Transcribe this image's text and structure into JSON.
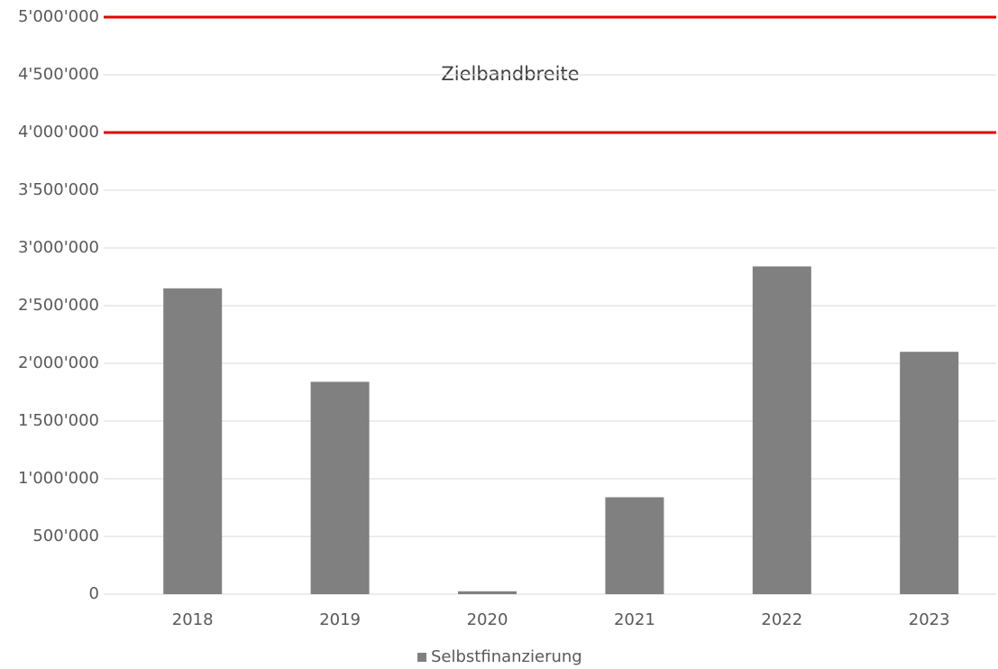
{
  "chart_data": {
    "type": "bar",
    "categories": [
      "2018",
      "2019",
      "2020",
      "2021",
      "2022",
      "2023"
    ],
    "series": [
      {
        "name": "Selbstfinanzierung",
        "color": "#808080",
        "values": [
          2650000,
          1840000,
          25000,
          840000,
          2840000,
          2100000
        ]
      }
    ],
    "ylim": [
      0,
      5000000
    ],
    "yticks": [
      0,
      {
        "value": 500000,
        "label": "500'000"
      },
      {
        "value": 1000000,
        "label": "1'000'000"
      },
      {
        "value": 1500000,
        "label": "1'500'000"
      },
      {
        "value": 2000000,
        "label": "2'000'000"
      },
      {
        "value": 2500000,
        "label": "2'500'000"
      },
      {
        "value": 3000000,
        "label": "3'000'000"
      },
      {
        "value": 3500000,
        "label": "3'500'000"
      },
      {
        "value": 4000000,
        "label": "4'000'000"
      },
      {
        "value": 4500000,
        "label": "4'500'000"
      },
      {
        "value": 5000000,
        "label": "5'000'000"
      }
    ],
    "grid": true,
    "reference_lines": [
      {
        "value": 4000000,
        "color": "#e00000"
      },
      {
        "value": 5000000,
        "color": "#e00000"
      }
    ],
    "annotation": "Zielbandbreite",
    "legend": "bottom"
  }
}
